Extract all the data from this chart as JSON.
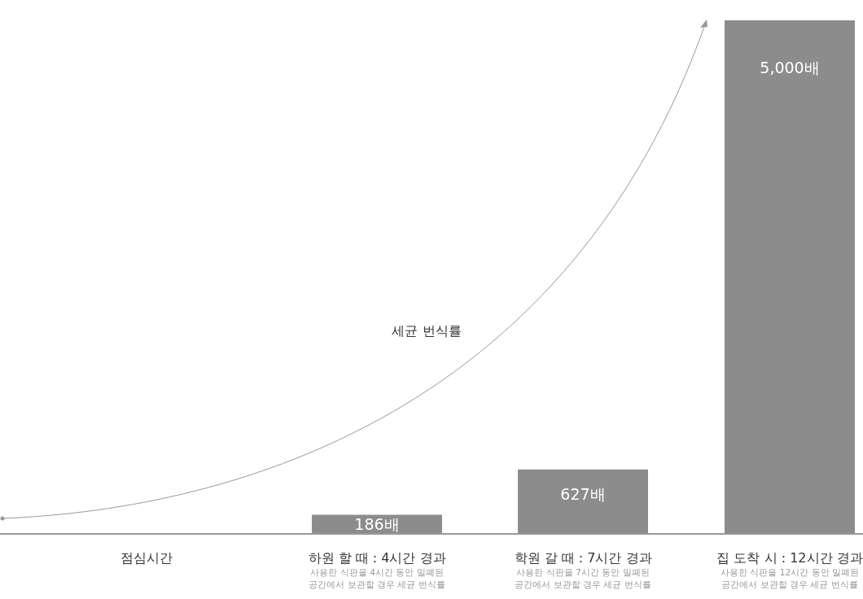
{
  "chart_data": {
    "type": "bar",
    "categories": [
      "점심시간",
      "하원 할 때 : 4시간 경과",
      "학원 갈 때 : 7시간 경과",
      "집 도착 시 : 12시간 경과"
    ],
    "values": [
      null,
      186,
      627,
      5000
    ],
    "value_labels": [
      null,
      "186배",
      "627배",
      "5,000배"
    ],
    "color": "#8c8c8c",
    "annotations": [
      "세균 번식률",
      "사용한 식판을 4시간 동안 밀폐된 공간에서 보관할 경우 세균 번식률",
      "사용한 식판을 7시간 동안 밀폐된 공간에서 보관할 경우 세균 번식률",
      "사용한 식판을 12시간 동안 밀폐된 공간에서 보관할 경우 세균 번식률"
    ]
  }
}
